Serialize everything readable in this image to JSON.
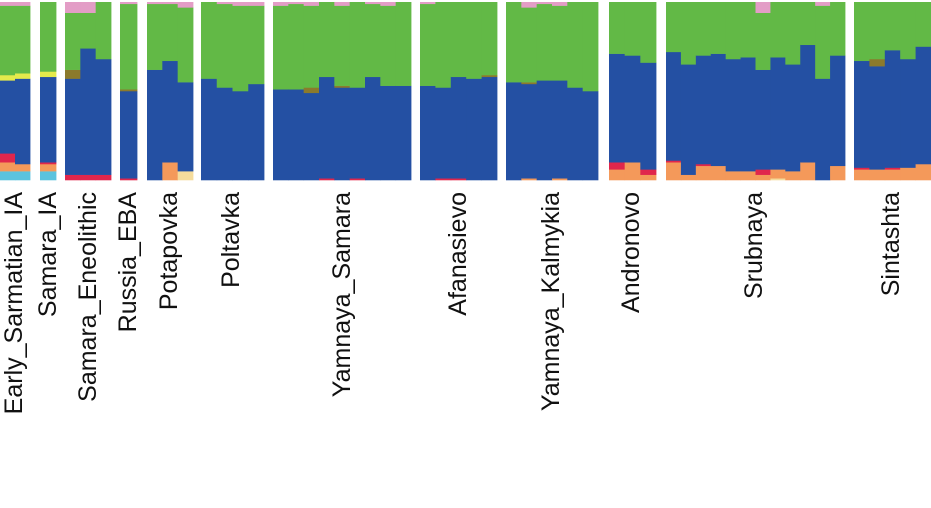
{
  "chart_data": {
    "type": "bar",
    "subtype": "stacked-admixture",
    "title": "",
    "xlabel": "",
    "ylabel": "",
    "ylim": [
      0,
      1
    ],
    "component_order_bottom_to_top": [
      "cyan",
      "cream",
      "orange",
      "red",
      "blue",
      "olive",
      "yellow",
      "green",
      "pink"
    ],
    "colors": {
      "cyan": "#5bc3de",
      "cream": "#f5dc9c",
      "orange": "#f4995a",
      "red": "#e0264c",
      "blue": "#2450a3",
      "olive": "#8b7a2c",
      "yellow": "#e4ea4c",
      "green": "#62b946",
      "pink": "#e39dc6"
    },
    "groups": [
      {
        "name": "Early_Sarmatian_IA",
        "individuals": [
          [
            0.05,
            0,
            0.05,
            0.05,
            0.41,
            0,
            0.03,
            0.39,
            0.02
          ],
          [
            0.05,
            0,
            0.04,
            0,
            0.48,
            0,
            0.03,
            0.38,
            0.02
          ]
        ]
      },
      {
        "name": "Samara_IA",
        "individuals": [
          [
            0.05,
            0,
            0.04,
            0.01,
            0.48,
            0,
            0.03,
            0.39,
            0
          ]
        ]
      },
      {
        "name": "Samara_Eneolithic",
        "individuals": [
          [
            0,
            0,
            0,
            0.03,
            0.54,
            0.05,
            0,
            0.32,
            0.06
          ],
          [
            0,
            0,
            0,
            0.03,
            0.71,
            0,
            0,
            0.2,
            0.06
          ],
          [
            0,
            0,
            0,
            0.03,
            0.65,
            0,
            0,
            0.32,
            0
          ]
        ]
      },
      {
        "name": "Russia_EBA",
        "individuals": [
          [
            0,
            0,
            0,
            0.01,
            0.49,
            0.01,
            0,
            0.48,
            0.01
          ]
        ]
      },
      {
        "name": "Potapovka",
        "individuals": [
          [
            0,
            0,
            0,
            0,
            0.62,
            0,
            0,
            0.37,
            0.01
          ],
          [
            0,
            0,
            0.1,
            0,
            0.57,
            0,
            0,
            0.32,
            0.01
          ],
          [
            0,
            0.05,
            0,
            0,
            0.5,
            0,
            0,
            0.42,
            0.03
          ]
        ]
      },
      {
        "name": "Poltavka",
        "individuals": [
          [
            0,
            0,
            0,
            0,
            0.57,
            0,
            0,
            0.43,
            0
          ],
          [
            0,
            0,
            0,
            0,
            0.52,
            0,
            0,
            0.47,
            0.01
          ],
          [
            0,
            0,
            0,
            0,
            0.5,
            0,
            0,
            0.48,
            0.02
          ],
          [
            0,
            0,
            0,
            0,
            0.54,
            0,
            0,
            0.44,
            0.02
          ]
        ]
      },
      {
        "name": "Yamnaya_Samara",
        "individuals": [
          [
            0,
            0,
            0,
            0,
            0.51,
            0,
            0,
            0.47,
            0.02
          ],
          [
            0,
            0,
            0,
            0,
            0.51,
            0,
            0,
            0.48,
            0.01
          ],
          [
            0,
            0,
            0,
            0,
            0.49,
            0.03,
            0,
            0.46,
            0.02
          ],
          [
            0,
            0,
            0,
            0.01,
            0.57,
            0,
            0,
            0.42,
            0
          ],
          [
            0,
            0,
            0,
            0,
            0.52,
            0.01,
            0,
            0.45,
            0.02
          ],
          [
            0,
            0,
            0,
            0.01,
            0.51,
            0,
            0,
            0.48,
            0
          ],
          [
            0,
            0,
            0,
            0,
            0.58,
            0,
            0,
            0.41,
            0.01
          ],
          [
            0,
            0,
            0,
            0,
            0.53,
            0,
            0,
            0.45,
            0.02
          ],
          [
            0,
            0,
            0,
            0,
            0.53,
            0,
            0,
            0.47,
            0
          ]
        ]
      },
      {
        "name": "Afanasievo",
        "individuals": [
          [
            0,
            0,
            0,
            0,
            0.53,
            0,
            0,
            0.46,
            0.01
          ],
          [
            0,
            0,
            0,
            0.01,
            0.51,
            0,
            0,
            0.48,
            0
          ],
          [
            0,
            0,
            0,
            0.01,
            0.57,
            0,
            0,
            0.42,
            0
          ],
          [
            0,
            0,
            0,
            0,
            0.57,
            0,
            0,
            0.43,
            0
          ],
          [
            0,
            0,
            0,
            0,
            0.58,
            0.01,
            0,
            0.41,
            0
          ]
        ]
      },
      {
        "name": "Yamnaya_Kalmykia",
        "individuals": [
          [
            0,
            0,
            0,
            0,
            0.55,
            0,
            0,
            0.45,
            0
          ],
          [
            0,
            0,
            0.01,
            0,
            0.53,
            0.01,
            0,
            0.42,
            0.03
          ],
          [
            0,
            0,
            0,
            0,
            0.56,
            0,
            0,
            0.43,
            0.01
          ],
          [
            0,
            0,
            0.01,
            0,
            0.55,
            0,
            0,
            0.42,
            0.02
          ],
          [
            0,
            0,
            0,
            0,
            0.52,
            0,
            0,
            0.48,
            0
          ],
          [
            0,
            0,
            0,
            0,
            0.5,
            0,
            0,
            0.5,
            0
          ]
        ]
      },
      {
        "name": "Andronovo",
        "individuals": [
          [
            0,
            0,
            0.06,
            0.04,
            0.61,
            0,
            0,
            0.29,
            0
          ],
          [
            0,
            0,
            0.1,
            0,
            0.6,
            0,
            0,
            0.3,
            0
          ],
          [
            0,
            0,
            0.03,
            0.03,
            0.6,
            0,
            0,
            0.34,
            0
          ]
        ]
      },
      {
        "name": "Srubnaya",
        "individuals": [
          [
            0,
            0,
            0.1,
            0.01,
            0.61,
            0,
            0,
            0.28,
            0
          ],
          [
            0,
            0,
            0.03,
            0,
            0.62,
            0,
            0,
            0.35,
            0
          ],
          [
            0,
            0,
            0.08,
            0.01,
            0.61,
            0,
            0,
            0.3,
            0
          ],
          [
            0,
            0,
            0.08,
            0,
            0.63,
            0,
            0,
            0.29,
            0
          ],
          [
            0,
            0,
            0.05,
            0,
            0.63,
            0,
            0,
            0.32,
            0
          ],
          [
            0,
            0,
            0.05,
            0,
            0.64,
            0,
            0,
            0.31,
            0
          ],
          [
            0,
            0,
            0.03,
            0.03,
            0.56,
            0,
            0,
            0.32,
            0.06
          ],
          [
            0,
            0.01,
            0.05,
            0,
            0.63,
            0,
            0,
            0.31,
            0
          ],
          [
            0,
            0,
            0.05,
            0,
            0.6,
            0,
            0,
            0.35,
            0
          ],
          [
            0,
            0,
            0.1,
            0,
            0.66,
            0,
            0,
            0.24,
            0
          ],
          [
            0,
            0,
            0,
            0,
            0.57,
            0,
            0,
            0.41,
            0.02
          ],
          [
            0,
            0,
            0.08,
            0,
            0.62,
            0,
            0,
            0.3,
            0
          ]
        ]
      },
      {
        "name": "Sintashta",
        "individuals": [
          [
            0,
            0,
            0.06,
            0.01,
            0.6,
            0,
            0,
            0.33,
            0
          ],
          [
            0,
            0,
            0.06,
            0,
            0.58,
            0.04,
            0,
            0.32,
            0
          ],
          [
            0,
            0,
            0.06,
            0.01,
            0.66,
            0,
            0,
            0.27,
            0
          ],
          [
            0,
            0,
            0.07,
            0,
            0.61,
            0,
            0,
            0.32,
            0
          ],
          [
            0,
            0,
            0.09,
            0,
            0.66,
            0,
            0,
            0.25,
            0
          ]
        ]
      }
    ]
  }
}
